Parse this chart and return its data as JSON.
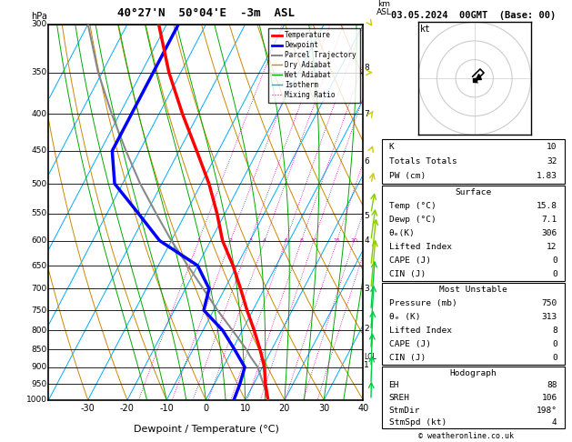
{
  "title_main": "40°27'N  50°04'E  -3m  ASL",
  "title_date": "03.05.2024  00GMT  (Base: 00)",
  "xlabel": "Dewpoint / Temperature (°C)",
  "pressure_levels": [
    300,
    350,
    400,
    450,
    500,
    550,
    600,
    650,
    700,
    750,
    800,
    850,
    900,
    950,
    1000
  ],
  "temp_ticks": [
    -30,
    -20,
    -10,
    0,
    10,
    20,
    30,
    40
  ],
  "km_labels": [
    1,
    2,
    3,
    4,
    5,
    6,
    7,
    8
  ],
  "km_pressures": [
    895,
    795,
    700,
    600,
    555,
    465,
    400,
    345
  ],
  "lcl_pressure": 870,
  "mixing_ratio_values": [
    1,
    2,
    3,
    4,
    6,
    8,
    10,
    15,
    20,
    25
  ],
  "sounding_color": "#ff0000",
  "dewpoint_color": "#0000ff",
  "parcel_color": "#888888",
  "dry_adiabat_color": "#cc8800",
  "wet_adiabat_color": "#00aa00",
  "isotherm_color": "#00aaff",
  "mixing_ratio_color": "#cc00aa",
  "temperature_data": {
    "pressure": [
      1000,
      950,
      900,
      850,
      800,
      750,
      700,
      650,
      600,
      550,
      500,
      450,
      400,
      350,
      300
    ],
    "temp": [
      15.8,
      13.0,
      10.5,
      7.0,
      3.0,
      -1.5,
      -6.0,
      -11.0,
      -17.0,
      -22.0,
      -28.0,
      -35.5,
      -44.0,
      -53.0,
      -62.0
    ]
  },
  "dewpoint_data": {
    "pressure": [
      1000,
      950,
      900,
      850,
      800,
      750,
      700,
      650,
      600,
      550,
      500,
      450,
      400,
      350,
      300
    ],
    "temp": [
      7.1,
      6.5,
      5.5,
      0.5,
      -5.0,
      -12.5,
      -14.0,
      -20.0,
      -33.0,
      -42.0,
      -52.0,
      -57.0,
      -57.0,
      -57.0,
      -57.0
    ]
  },
  "parcel_data": {
    "pressure": [
      1000,
      950,
      900,
      870,
      850,
      800,
      750,
      700,
      650,
      600,
      550,
      500,
      450,
      400,
      350,
      300
    ],
    "temp": [
      15.8,
      12.5,
      8.8,
      5.5,
      3.5,
      -2.5,
      -9.0,
      -15.5,
      -22.5,
      -30.0,
      -37.5,
      -45.5,
      -53.5,
      -62.0,
      -71.0,
      -80.0
    ]
  },
  "wind_pressures": [
    1000,
    950,
    900,
    850,
    800,
    750,
    700,
    650,
    600,
    550,
    500,
    450,
    400,
    350,
    300
  ],
  "wind_directions": [
    200,
    210,
    215,
    220,
    225,
    230,
    235,
    240,
    245,
    250,
    255,
    260,
    265,
    270,
    275
  ],
  "wind_speeds": [
    5,
    8,
    10,
    12,
    15,
    18,
    20,
    22,
    18,
    15,
    12,
    10,
    8,
    6,
    5
  ],
  "stats_k": 10,
  "stats_tt": 32,
  "stats_pw": "1.83",
  "stats_surf_temp": "15.8",
  "stats_surf_dewp": "7.1",
  "stats_surf_theta_e": 306,
  "stats_surf_li": 12,
  "stats_surf_cape": 0,
  "stats_surf_cin": 0,
  "stats_mu_pressure": 750,
  "stats_mu_theta_e": 313,
  "stats_mu_li": 8,
  "stats_mu_cape": 0,
  "stats_mu_cin": 0,
  "stats_eh": 88,
  "stats_sreh": 106,
  "stats_stmdir": "198°",
  "stats_stmspd": 4,
  "hodo_u": [
    0,
    2,
    3,
    4,
    5,
    4,
    3,
    2,
    1,
    0,
    -1
  ],
  "hodo_v": [
    -1,
    0,
    1,
    2,
    3,
    4,
    5,
    4,
    3,
    2,
    1
  ],
  "hodo_storm_u": 2,
  "hodo_storm_v": 1
}
